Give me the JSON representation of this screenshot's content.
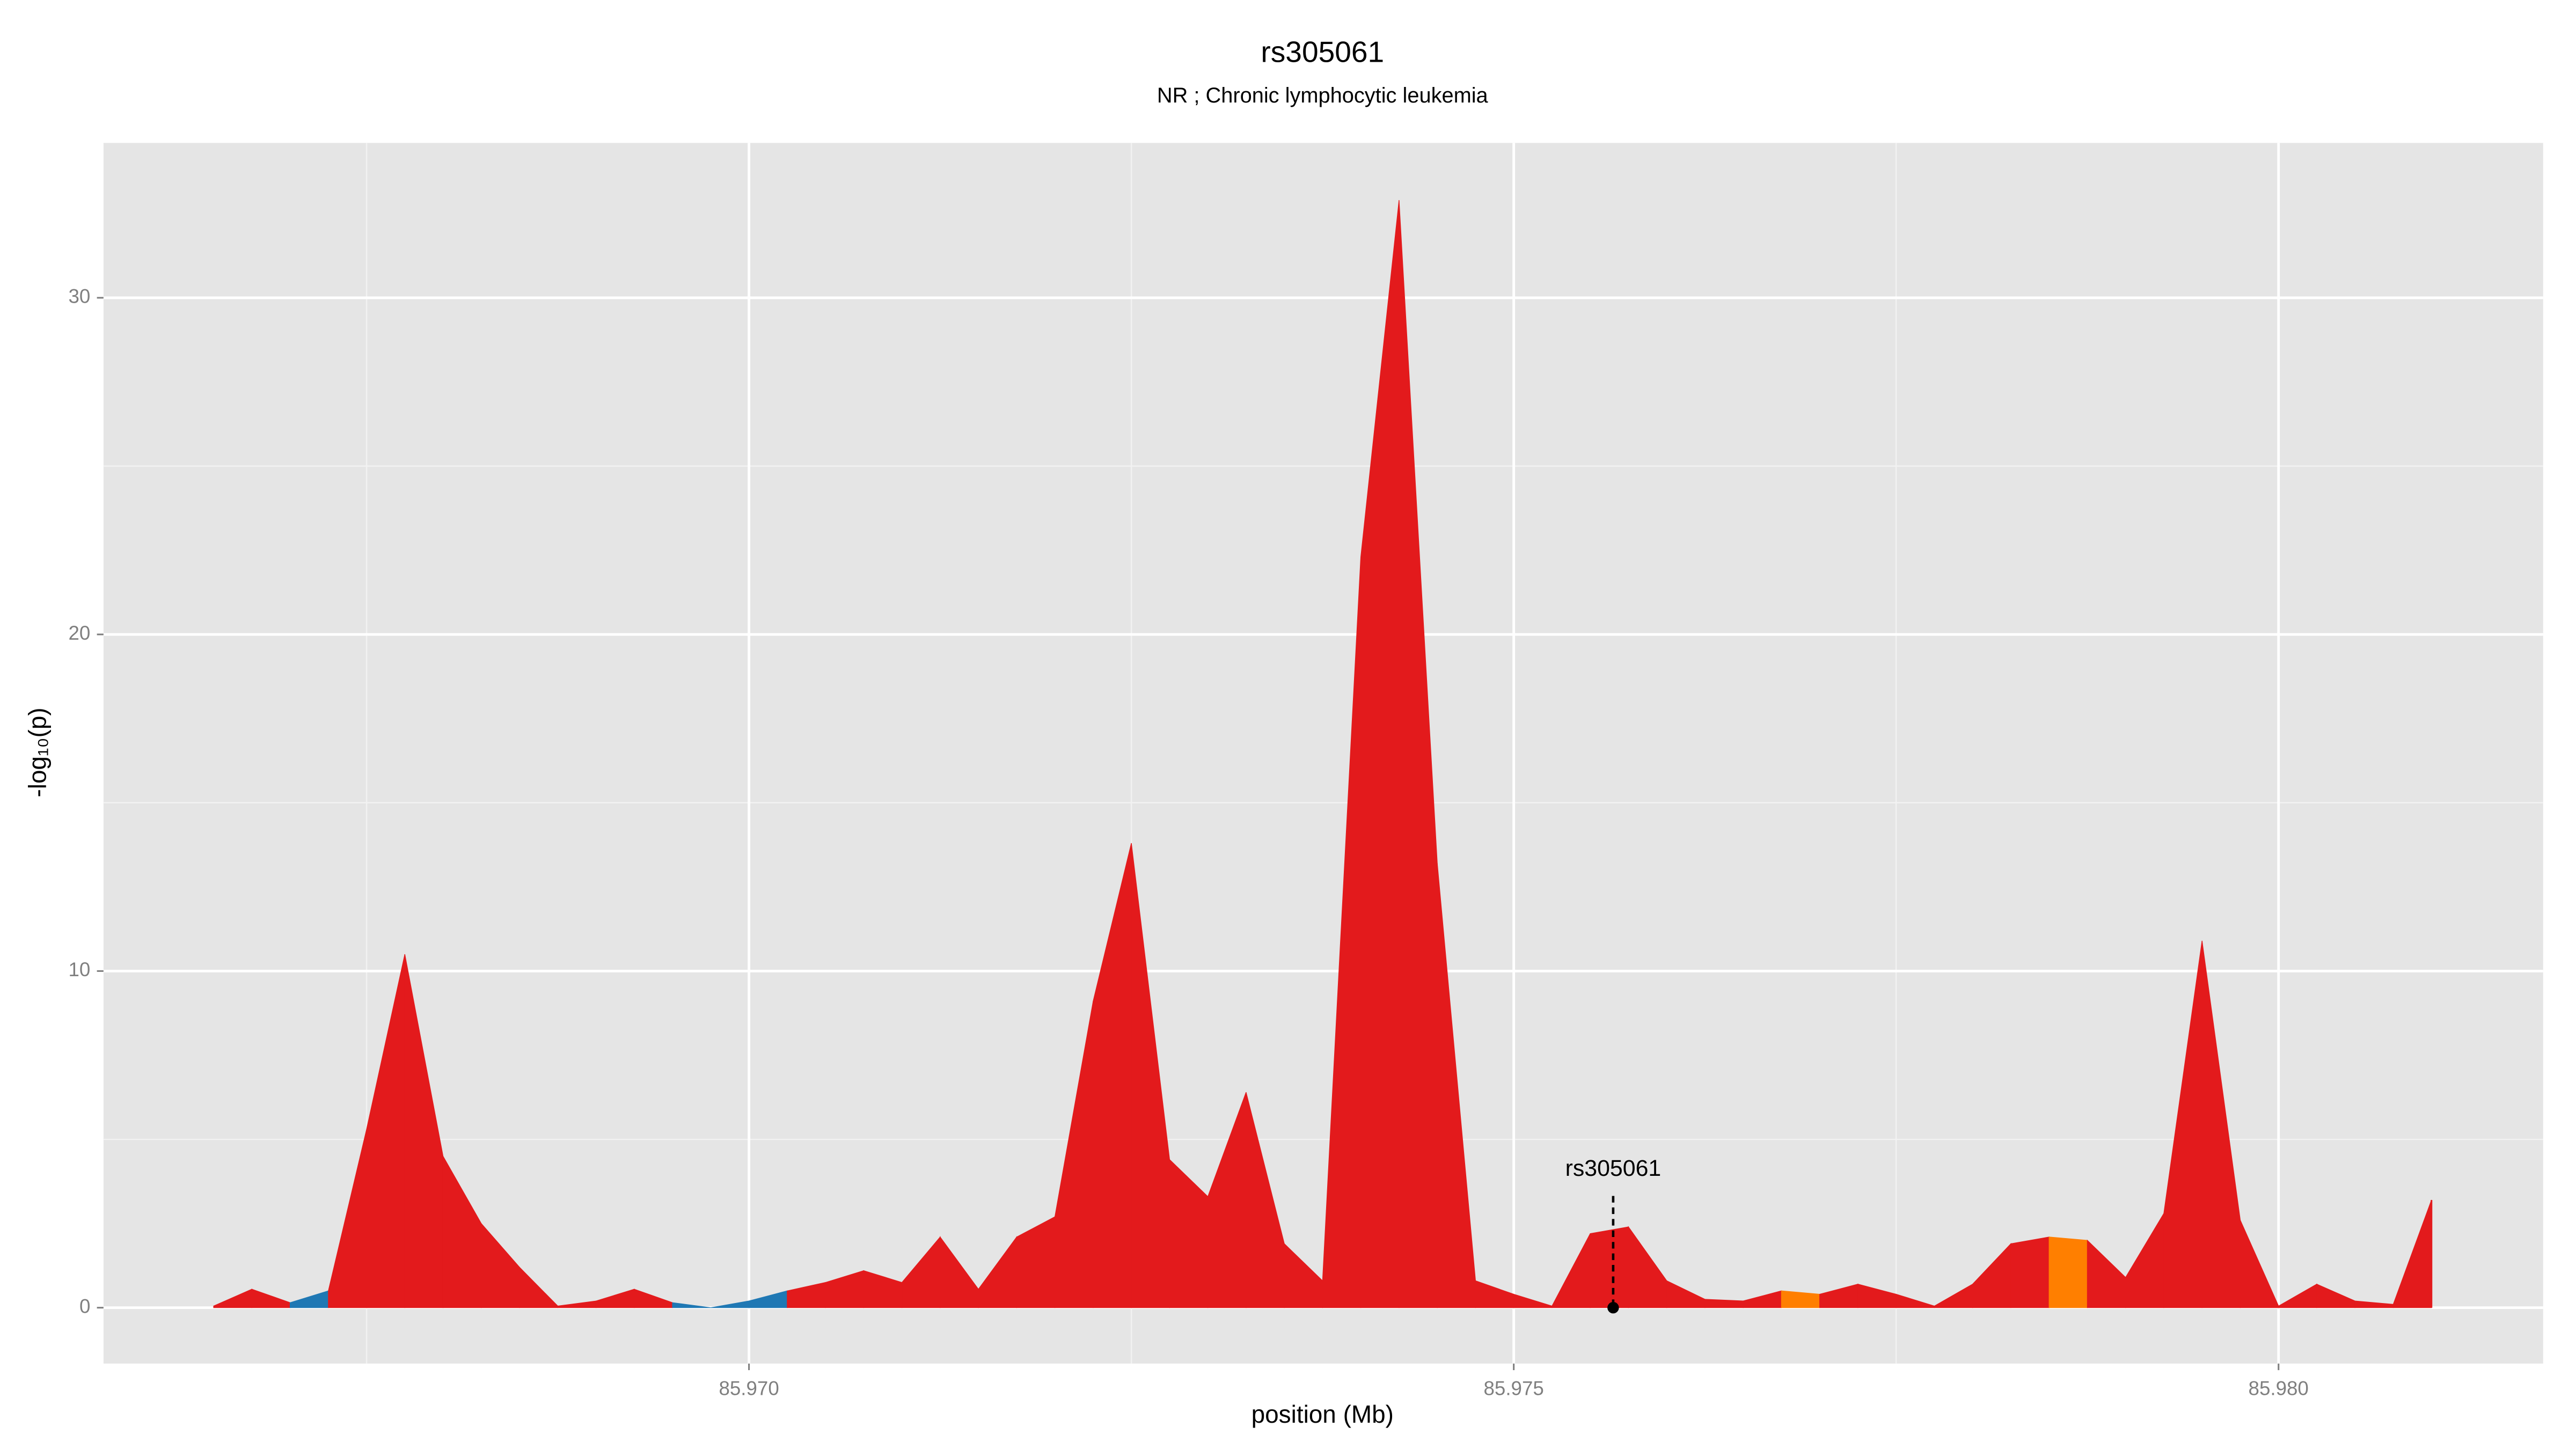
{
  "chart_data": {
    "type": "area",
    "title": "rs305061",
    "subtitle": "NR ; Chronic lymphocytic leukemia",
    "xlabel": "position (Mb)",
    "ylabel": "-log₁₀(p)",
    "x": [
      85.9665,
      85.96675,
      85.967,
      85.96725,
      85.9675,
      85.96775,
      85.968,
      85.96825,
      85.9685,
      85.96875,
      85.969,
      85.96925,
      85.9695,
      85.96975,
      85.97,
      85.97025,
      85.9705,
      85.97075,
      85.971,
      85.97125,
      85.9715,
      85.97175,
      85.972,
      85.97225,
      85.9725,
      85.97275,
      85.973,
      85.97325,
      85.9735,
      85.97375,
      85.974,
      85.97425,
      85.9745,
      85.97475,
      85.975,
      85.97525,
      85.9755,
      85.97575,
      85.976,
      85.97625,
      85.9765,
      85.97675,
      85.977,
      85.97725,
      85.9775,
      85.97775,
      85.978,
      85.97825,
      85.9785,
      85.97875,
      85.979,
      85.97925,
      85.9795,
      85.97975,
      85.98,
      85.98025,
      85.9805,
      85.98075,
      85.981
    ],
    "series": [
      {
        "values": [
          0.05,
          0.55,
          0.15,
          0.5,
          5.3,
          10.5,
          4.5,
          2.5,
          1.2,
          0.05,
          0.2,
          0.55,
          0.15,
          0.0,
          0.2,
          0.5,
          0.75,
          1.1,
          0.75,
          2.1,
          0.55,
          2.1,
          2.7,
          9.1,
          13.8,
          4.4,
          3.3,
          6.4,
          1.9,
          0.8,
          22.3,
          32.9,
          13.2,
          0.8,
          0.4,
          0.05,
          2.2,
          2.4,
          0.8,
          0.25,
          0.2,
          0.5,
          0.4,
          0.7,
          0.4,
          0.05,
          0.7,
          1.9,
          2.1,
          2.0,
          0.9,
          2.8,
          10.9,
          2.6,
          0.05,
          0.7,
          0.2,
          0.1,
          3.2
        ],
        "colors": [
          "#e31a1c",
          "#e31a1c",
          "#1f78b4",
          "#e31a1c",
          "#e31a1c",
          "#e31a1c",
          "#e31a1c",
          "#e31a1c",
          "#e31a1c",
          "#e31a1c",
          "#e31a1c",
          "#e31a1c",
          "#1f78b4",
          "#1f78b4",
          "#1f78b4",
          "#e31a1c",
          "#e31a1c",
          "#e31a1c",
          "#e31a1c",
          "#e31a1c",
          "#e31a1c",
          "#e31a1c",
          "#e31a1c",
          "#e31a1c",
          "#e31a1c",
          "#e31a1c",
          "#e31a1c",
          "#e31a1c",
          "#e31a1c",
          "#e31a1c",
          "#e31a1c",
          "#e31a1c",
          "#e31a1c",
          "#e31a1c",
          "#e31a1c",
          "#e31a1c",
          "#e31a1c",
          "#e31a1c",
          "#e31a1c",
          "#e31a1c",
          "#e31a1c",
          "#ff7f00",
          "#e31a1c",
          "#e31a1c",
          "#e31a1c",
          "#e31a1c",
          "#e31a1c",
          "#e31a1c",
          "#ff7f00",
          "#e31a1c",
          "#e31a1c",
          "#e31a1c",
          "#e31a1c",
          "#e31a1c",
          "#e31a1c",
          "#e31a1c",
          "#e31a1c",
          "#e31a1c",
          "#e31a1c"
        ]
      }
    ],
    "annotations": [
      {
        "label": "rs305061",
        "x": 85.97565,
        "y": 0,
        "label_y": 4.1
      }
    ],
    "xlim": [
      85.96578,
      85.98173
    ],
    "ylim": [
      -1.66,
      34.6
    ],
    "xticks": [
      {
        "value": 85.97,
        "label": "85.970"
      },
      {
        "value": 85.975,
        "label": "85.975"
      },
      {
        "value": 85.98,
        "label": "85.980"
      }
    ],
    "yticks": [
      0,
      10,
      20,
      30
    ],
    "x_minor_ticks": [
      85.9675,
      85.9725,
      85.9775
    ],
    "y_minor_ticks": [
      5,
      15,
      25
    ],
    "grid": true
  }
}
